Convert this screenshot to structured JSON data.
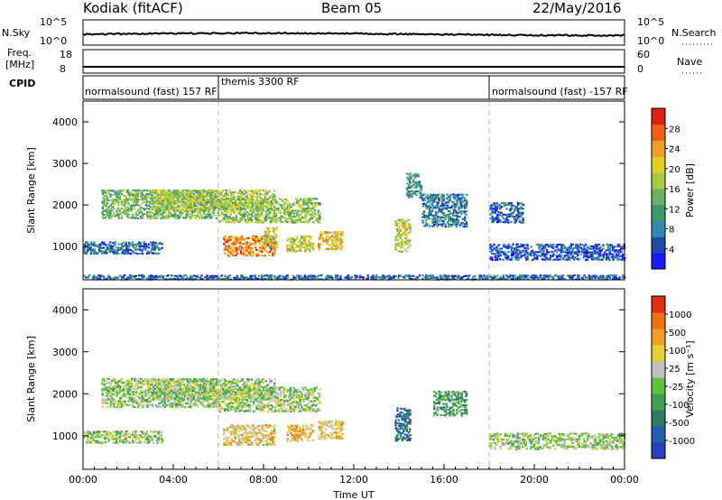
{
  "header": {
    "station": "Kodiak (fitACF)",
    "beam": "Beam 05",
    "date": "22/May/2016"
  },
  "noise_panel": {
    "left_label": "N.Sky",
    "right_label": "N.Search",
    "left_ticks": [
      "10^5",
      "10^0"
    ],
    "right_ticks": [
      "10^5",
      "10^0"
    ]
  },
  "freq_panel": {
    "left_label": "Freq.",
    "left_unit": "[MHz]",
    "right_label": "Nave",
    "left_ticks": [
      "18",
      "8"
    ],
    "right_ticks": [
      "60",
      "0"
    ]
  },
  "cpid_panel": {
    "label": "CPID",
    "modes": [
      {
        "text": "normalsound (fast) 157 RF",
        "start_hour": 0
      },
      {
        "text": "themis 3300 RF",
        "start_hour": 6
      },
      {
        "text": "normalsound (fast) -157 RF",
        "start_hour": 18
      }
    ]
  },
  "chart_data": [
    {
      "type": "heatmap",
      "name": "power",
      "ylabel": "Slant Range [km]",
      "yticks": [
        "1000",
        "2000",
        "3000",
        "4000"
      ],
      "ylim": [
        200,
        4500
      ],
      "xlim": [
        0,
        24
      ],
      "colorbar_label": "Power [dB]",
      "colorbar_ticks": [
        "4",
        "8",
        "12",
        "16",
        "20",
        "24",
        "28"
      ],
      "colorbar_colors": [
        "#1a1aff",
        "#1e4ba8",
        "#2e8ab0",
        "#3c9a6a",
        "#69b060",
        "#a8cc40",
        "#e0d020",
        "#f0a020",
        "#f06010",
        "#e02010"
      ],
      "dashed_lines_hours": [
        6,
        18
      ],
      "echo_regions": [
        {
          "t0": 0.8,
          "t1": 6.0,
          "r0": 1700,
          "r1": 2400,
          "level": 0.45
        },
        {
          "t0": 3.0,
          "t1": 8.5,
          "r0": 1900,
          "r1": 2400,
          "level": 0.55
        },
        {
          "t0": 6.0,
          "t1": 10.5,
          "r0": 1600,
          "r1": 2200,
          "level": 0.5
        },
        {
          "t0": 6.2,
          "t1": 8.5,
          "r0": 800,
          "r1": 1300,
          "level": 0.8
        },
        {
          "t0": 8.0,
          "t1": 8.6,
          "r0": 1000,
          "r1": 1500,
          "level": 0.6
        },
        {
          "t0": 9.0,
          "t1": 10.2,
          "r0": 900,
          "r1": 1300,
          "level": 0.6
        },
        {
          "t0": 10.4,
          "t1": 11.5,
          "r0": 950,
          "r1": 1400,
          "level": 0.7
        },
        {
          "t0": 13.8,
          "t1": 14.5,
          "r0": 900,
          "r1": 1700,
          "level": 0.6
        },
        {
          "t0": 14.3,
          "t1": 15.0,
          "r0": 2200,
          "r1": 2800,
          "level": 0.3
        },
        {
          "t0": 15.0,
          "t1": 17.0,
          "r0": 1500,
          "r1": 2300,
          "level": 0.25
        },
        {
          "t0": 18.0,
          "t1": 19.5,
          "r0": 1600,
          "r1": 2100,
          "level": 0.2
        },
        {
          "t0": 0.0,
          "t1": 3.5,
          "r0": 850,
          "r1": 1150,
          "level": 0.2
        },
        {
          "t0": 18.0,
          "t1": 24.0,
          "r0": 700,
          "r1": 1100,
          "level": 0.15
        },
        {
          "t0": 0.0,
          "t1": 24.0,
          "r0": 230,
          "r1": 350,
          "level": 0.2
        }
      ]
    },
    {
      "type": "heatmap",
      "name": "velocity",
      "ylabel": "Slant Range [km]",
      "yticks": [
        "1000",
        "2000",
        "3000",
        "4000"
      ],
      "ylim": [
        200,
        4500
      ],
      "xlim": [
        0,
        24
      ],
      "xticks": [
        "00:00",
        "04:00",
        "08:00",
        "12:00",
        "16:00",
        "20:00",
        "00:00"
      ],
      "xlabel": "Time UT",
      "colorbar_label": "Velocity [m s⁻¹]",
      "colorbar_ticks": [
        "1000",
        "500",
        "100",
        "25",
        "-25",
        "-100",
        "-500",
        "-1000"
      ],
      "colorbar_colors": [
        "#2a40c0",
        "#2060b0",
        "#307a60",
        "#40a050",
        "#60c040",
        "#c0c0c0",
        "#e8d030",
        "#f0a020",
        "#f07010",
        "#e03010"
      ],
      "dashed_lines_hours": [
        6,
        18
      ],
      "echo_regions": [
        {
          "t0": 0.8,
          "t1": 6.0,
          "r0": 1700,
          "r1": 2400,
          "level": 0.5
        },
        {
          "t0": 3.0,
          "t1": 8.5,
          "r0": 1900,
          "r1": 2400,
          "level": 0.5
        },
        {
          "t0": 6.0,
          "t1": 10.5,
          "r0": 1600,
          "r1": 2200,
          "level": 0.5
        },
        {
          "t0": 6.2,
          "t1": 8.5,
          "r0": 800,
          "r1": 1300,
          "level": 0.65
        },
        {
          "t0": 9.0,
          "t1": 10.2,
          "r0": 900,
          "r1": 1300,
          "level": 0.7
        },
        {
          "t0": 10.4,
          "t1": 11.5,
          "r0": 950,
          "r1": 1400,
          "level": 0.65
        },
        {
          "t0": 13.8,
          "t1": 14.5,
          "r0": 900,
          "r1": 1700,
          "level": 0.2
        },
        {
          "t0": 15.5,
          "t1": 17.0,
          "r0": 1500,
          "r1": 2100,
          "level": 0.35
        },
        {
          "t0": 0.0,
          "t1": 3.5,
          "r0": 850,
          "r1": 1150,
          "level": 0.5
        },
        {
          "t0": 18.0,
          "t1": 24.0,
          "r0": 700,
          "r1": 1100,
          "level": 0.5
        }
      ]
    }
  ]
}
